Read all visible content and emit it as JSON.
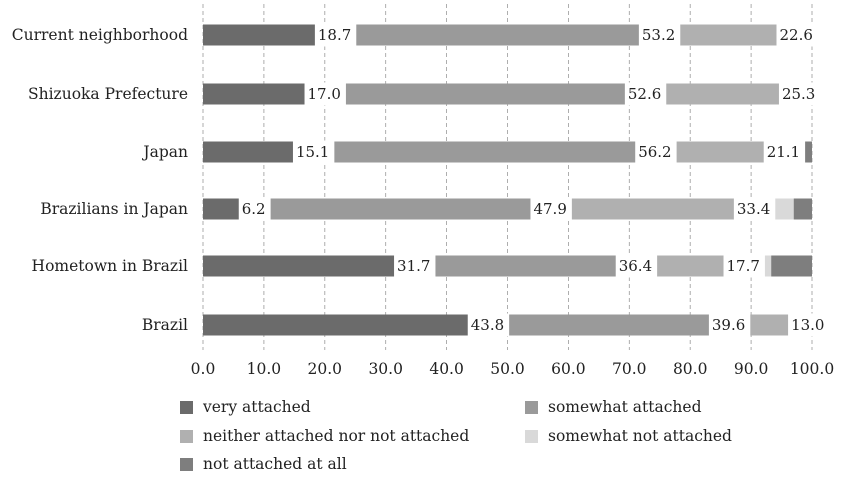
{
  "chart_data": {
    "type": "bar",
    "orientation": "horizontal",
    "stacked": true,
    "categories": [
      "Current neighborhood",
      "Shizuoka Prefecture",
      "Japan",
      "Brazilians in Japan",
      "Hometown in Brazil",
      "Brazil"
    ],
    "series": [
      {
        "name": "very attached",
        "color": "#6b6b6b",
        "values": [
          18.7,
          17.0,
          15.1,
          6.2,
          31.7,
          43.8
        ]
      },
      {
        "name": "somewhat attached",
        "color": "#9a9a9a",
        "values": [
          53.2,
          52.6,
          56.2,
          47.9,
          36.4,
          39.6
        ]
      },
      {
        "name": "neither attached nor not attached",
        "color": "#b0b0b0",
        "values": [
          22.6,
          25.3,
          21.1,
          33.4,
          17.7,
          13.0
        ]
      },
      {
        "name": "somewhat not attached",
        "color": "#d9d9d9",
        "values": [
          4.0,
          4.0,
          6.0,
          9.5,
          7.5,
          3.0
        ]
      },
      {
        "name": "not attached at all",
        "color": "#7e7e7e",
        "values": [
          1.5,
          1.1,
          1.6,
          3.0,
          6.7,
          0.6
        ]
      }
    ],
    "data_labels": [
      [
        "18.7",
        "53.2",
        "22.6"
      ],
      [
        "17.0",
        "52.6",
        "25.3"
      ],
      [
        "15.1",
        "56.2",
        "21.1"
      ],
      [
        "6.2",
        "47.9",
        "33.4"
      ],
      [
        "31.7",
        "36.4",
        "17.7"
      ],
      [
        "43.8",
        "39.6",
        "13.0"
      ]
    ],
    "x_ticks": [
      "0.0",
      "10.0",
      "20.0",
      "30.0",
      "40.0",
      "50.0",
      "60.0",
      "70.0",
      "80.0",
      "90.0",
      "100.0"
    ],
    "xlim": [
      0,
      100
    ],
    "title": "",
    "xlabel": "",
    "ylabel": "",
    "grid": "vertical dashed",
    "legend_position": "bottom"
  }
}
